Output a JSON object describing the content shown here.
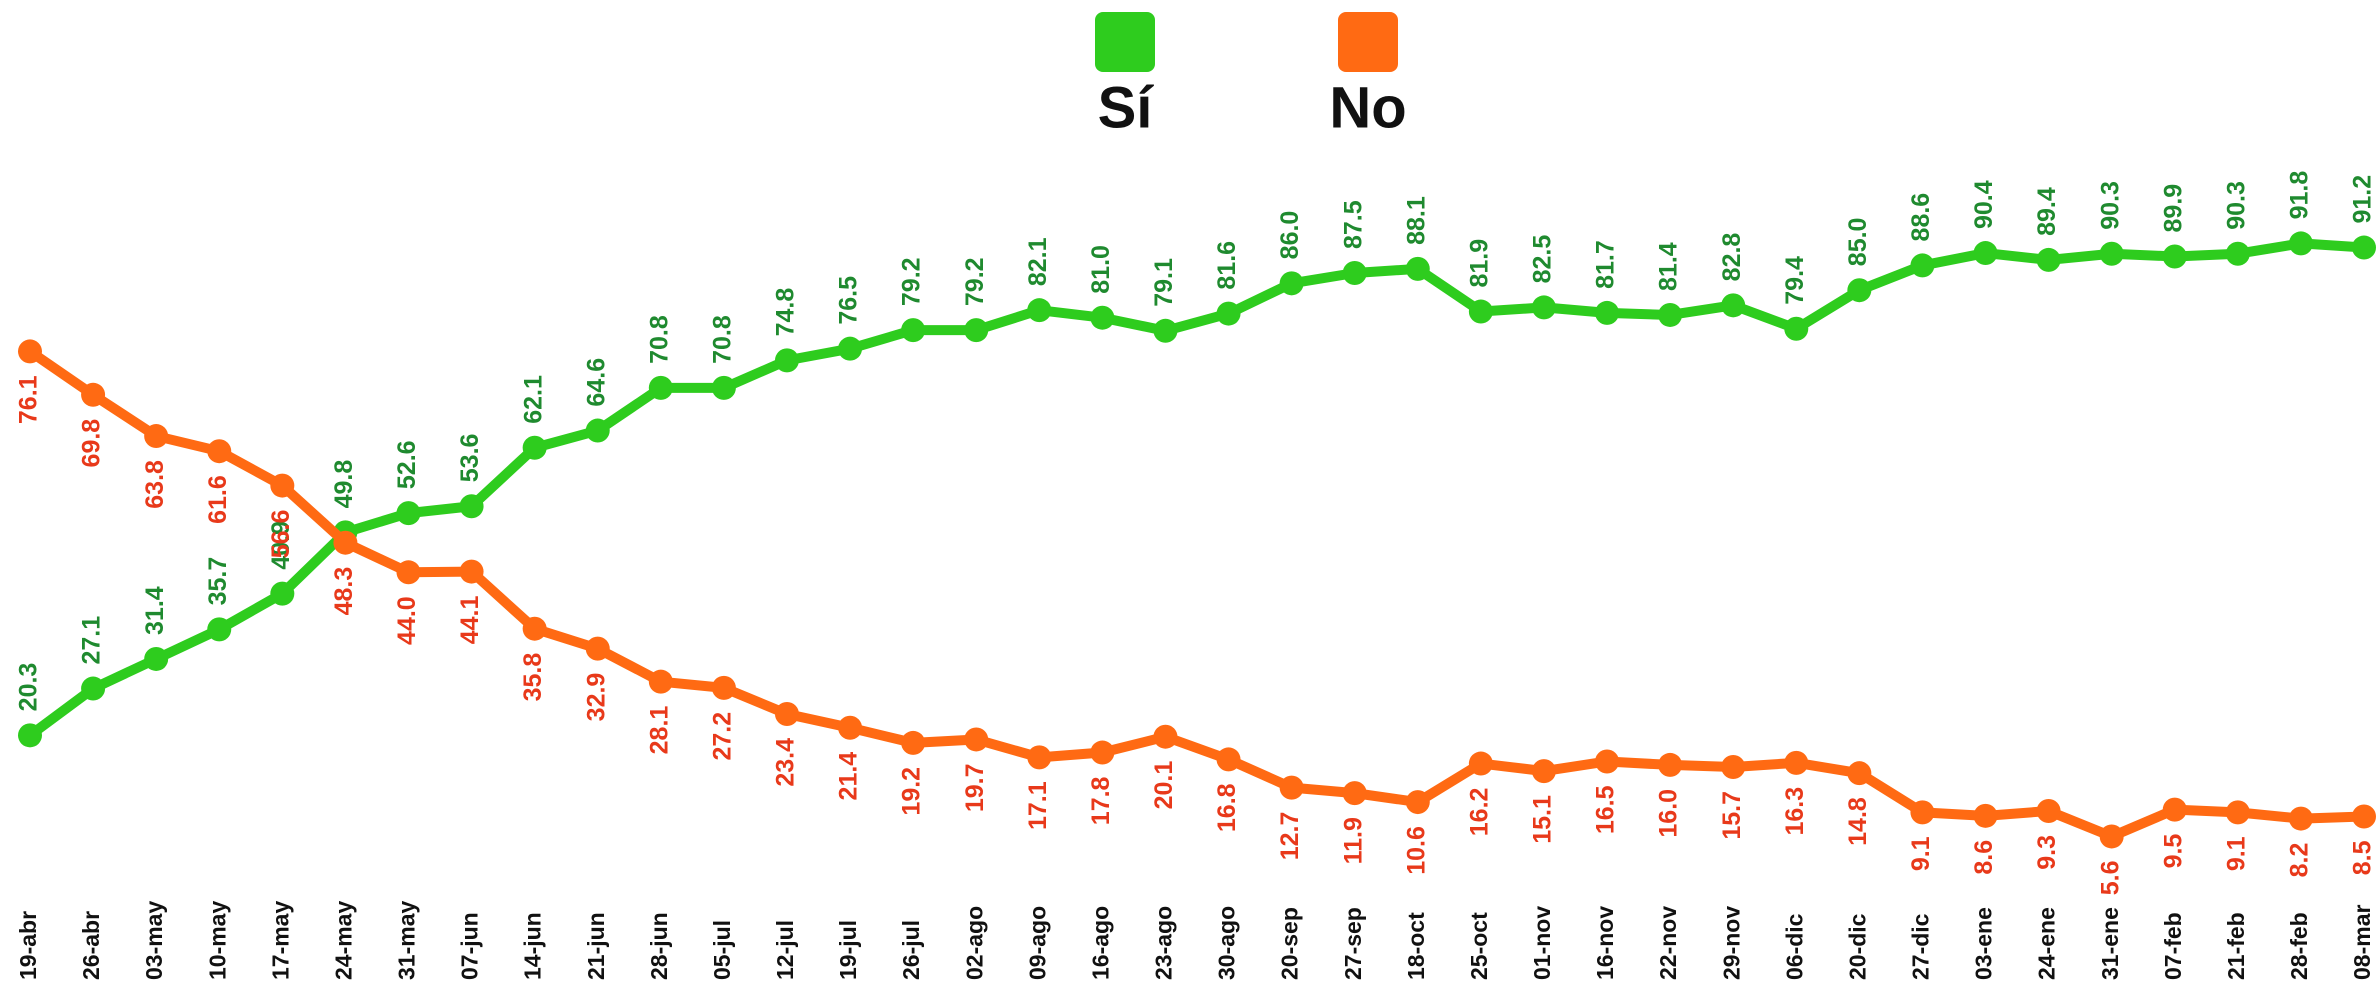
{
  "chart_data": {
    "type": "line",
    "categories": [
      "19-abr",
      "26-abr",
      "03-may",
      "10-may",
      "17-may",
      "24-may",
      "31-may",
      "07-jun",
      "14-jun",
      "21-jun",
      "28-jun",
      "05-jul",
      "12-jul",
      "19-jul",
      "26-jul",
      "02-ago",
      "09-ago",
      "16-ago",
      "23-ago",
      "30-ago",
      "20-sep",
      "27-sep",
      "18-oct",
      "25-oct",
      "01-nov",
      "16-nov",
      "22-nov",
      "29-nov",
      "06-dic",
      "20-dic",
      "27-dic",
      "03-ene",
      "24-ene",
      "31-ene",
      "07-feb",
      "21-feb",
      "28-feb",
      "08-mar"
    ],
    "series": [
      {
        "name": "Sí",
        "color": "#2ecc1e",
        "label_color": "#1f8a2f",
        "values": [
          20.3,
          27.1,
          31.4,
          35.7,
          40.9,
          49.8,
          52.6,
          53.6,
          62.1,
          64.6,
          70.8,
          70.8,
          74.8,
          76.5,
          79.2,
          79.2,
          82.1,
          81.0,
          79.1,
          81.6,
          86.0,
          87.5,
          88.1,
          81.9,
          82.5,
          81.7,
          81.4,
          82.8,
          79.4,
          85.0,
          88.6,
          90.4,
          89.4,
          90.3,
          89.9,
          90.3,
          91.8,
          91.2
        ],
        "value_labels": [
          "20.3",
          "27.1",
          "31.4",
          "35.7",
          "40.9",
          "49.8",
          "52.6",
          "53.6",
          "62.1",
          "64.6",
          "70.8",
          "70.8",
          "74.8",
          "76.5",
          "79.2",
          "79.2",
          "82.1",
          "81.0",
          "79.1",
          "81.6",
          "86.0",
          "87.5",
          "88.1",
          "81.9",
          "82.5",
          "81.7",
          "81.4",
          "82.8",
          "79.4",
          "85.0",
          "88.6",
          "90.4",
          "89.4",
          "90.3",
          "89.9",
          "90.3",
          "91.8",
          "91.2"
        ]
      },
      {
        "name": "No",
        "color": "#ff6a13",
        "label_color": "#e8391a",
        "values": [
          76.1,
          69.8,
          63.8,
          61.6,
          56.6,
          48.3,
          44.0,
          44.1,
          35.8,
          32.9,
          28.1,
          27.2,
          23.4,
          21.4,
          19.2,
          19.7,
          17.1,
          17.8,
          20.1,
          16.8,
          12.7,
          11.9,
          10.6,
          16.2,
          15.1,
          16.5,
          16.0,
          15.7,
          16.3,
          14.8,
          9.1,
          8.6,
          9.3,
          5.6,
          9.5,
          9.1,
          8.2,
          8.5
        ],
        "value_labels": [
          "76.1",
          "69.8",
          "63.8",
          "61.6",
          "56.6",
          "48.3",
          "44.0",
          "44.1",
          "35.8",
          "32.9",
          "28.1",
          "27.2",
          "23.4",
          "21.4",
          "19.2",
          "19.7",
          "17.1",
          "17.8",
          "20.1",
          "16.8",
          "12.7",
          "11.9",
          "10.6",
          "16.2",
          "15.1",
          "16.5",
          "16.0",
          "15.7",
          "16.3",
          "14.8",
          "9.1",
          "8.6",
          "9.3",
          "5.6",
          "9.5",
          "9.1",
          "8.2",
          "8.5"
        ]
      }
    ],
    "ylim": [
      0,
      100
    ]
  }
}
